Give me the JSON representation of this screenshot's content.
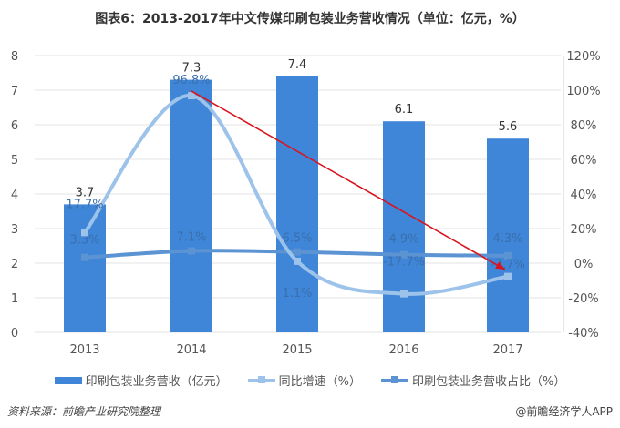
{
  "chart_data": {
    "type": "bar+line",
    "title": "图表6：2013-2017年中文传媒印刷包装业务营收情况（单位：亿元，%）",
    "categories": [
      "2013",
      "2014",
      "2015",
      "2016",
      "2017"
    ],
    "y_left": {
      "range": [
        0,
        8
      ],
      "ticks": [
        "0",
        "1",
        "2",
        "3",
        "4",
        "5",
        "6",
        "7",
        "8"
      ]
    },
    "y_right": {
      "range": [
        -40,
        120
      ],
      "ticks": [
        "-40%",
        "-20%",
        "0%",
        "20%",
        "40%",
        "60%",
        "80%",
        "100%",
        "120%"
      ]
    },
    "grid": true,
    "legend_position": "bottom",
    "series": [
      {
        "name": "印刷包装业务营收（亿元）",
        "type": "bar",
        "axis": "left",
        "values": [
          3.7,
          7.3,
          7.4,
          6.1,
          5.6
        ],
        "labels": [
          "3.7",
          "7.3",
          "7.4",
          "6.1",
          "5.6"
        ],
        "color": "#3f86d8"
      },
      {
        "name": "同比增速（%）",
        "type": "line",
        "axis": "right",
        "values": [
          17.7,
          96.8,
          1.1,
          -17.7,
          -7.7
        ],
        "labels": [
          "17.7%",
          "96.8%",
          "1.1%",
          "-17.7%",
          "-7.7%"
        ],
        "color": "#9dc3ea"
      },
      {
        "name": "印刷包装业务营收占比（%）",
        "type": "line",
        "axis": "right",
        "values": [
          3.3,
          7.1,
          6.5,
          4.9,
          4.3
        ],
        "labels": [
          "3.3%",
          "7.1%",
          "6.5%",
          "4.9%",
          "4.3%"
        ],
        "color": "#5b93d3"
      }
    ],
    "annotation": {
      "type": "arrow",
      "from": "2014",
      "to": "2017",
      "color": "#d9141e"
    }
  },
  "source": "资料来源：前瞻产业研究院整理",
  "credit": "@前瞻经济学人APP"
}
